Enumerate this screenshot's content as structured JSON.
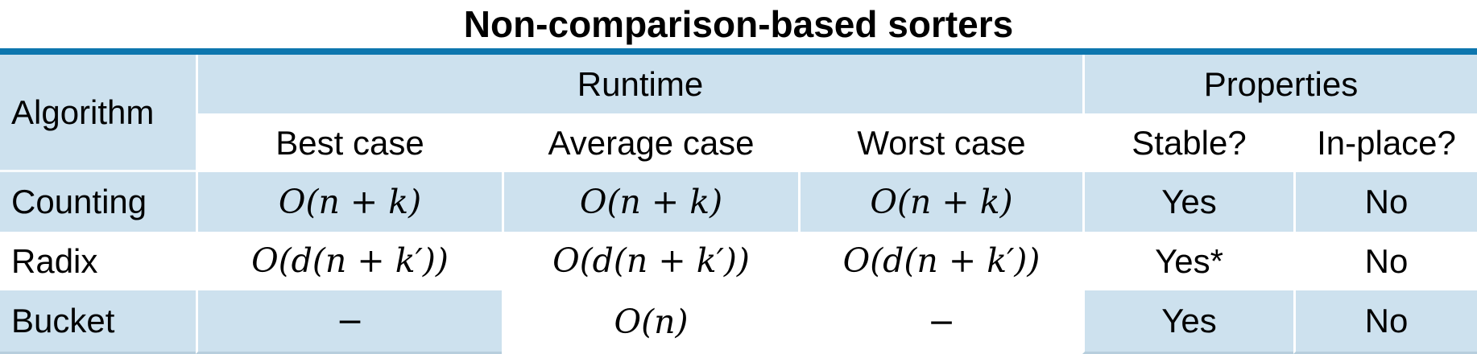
{
  "title": "Non-comparison-based sorters",
  "colors": {
    "accent_line": "#0d76ae",
    "cell_blue": "#cde1ee",
    "text": "#000000"
  },
  "table": {
    "header": {
      "algorithm": "Algorithm",
      "runtime_group": "Runtime",
      "properties_group": "Properties",
      "columns": [
        "Best case",
        "Average case",
        "Worst case",
        "Stable?",
        "In-place?"
      ]
    },
    "rows": [
      {
        "name": "Counting",
        "best_case": "O(n + k)",
        "average_case": "O(n + k)",
        "worst_case": "O(n + k)",
        "stable": "Yes",
        "in_place": "No"
      },
      {
        "name": "Radix",
        "best_case": "O(d(n + k′))",
        "average_case": "O(d(n + k′))",
        "worst_case": "O(d(n + k′))",
        "stable": "Yes*",
        "in_place": "No"
      },
      {
        "name": "Bucket",
        "best_case": "−",
        "average_case": "O(n)",
        "worst_case": "−",
        "stable": "Yes",
        "in_place": "No"
      }
    ]
  }
}
